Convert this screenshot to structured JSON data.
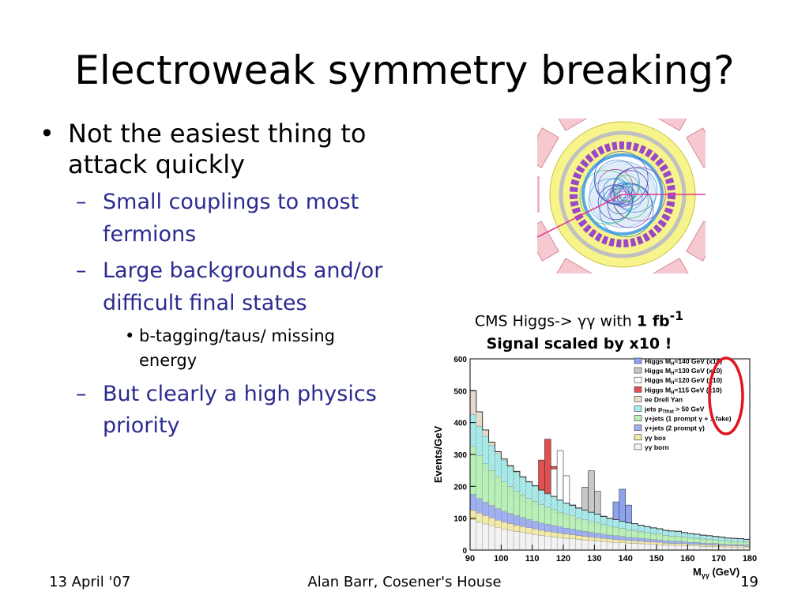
{
  "slide": {
    "title": "Electroweak symmetry breaking?",
    "bullets": {
      "main": "Not the easiest thing to attack quickly",
      "sub1": "Small couplings to most fermions",
      "sub2": "Large backgrounds and/or difficult final states",
      "subsub": "b-tagging/taus/ missing energy",
      "sub3": "But clearly a high physics priority"
    },
    "markers": {
      "dot": "•",
      "dash": "–"
    }
  },
  "caption": {
    "line1_prefix": "CMS Higgs-> ",
    "gamma_gamma": "γγ",
    "line1_with": " with ",
    "lumi": "1 fb",
    "lumi_exp": "-1",
    "line2": "Signal scaled by x10 !"
  },
  "footer": {
    "date": "13 April '07",
    "author": "Alan Barr, Cosener's House",
    "page": "19"
  },
  "chart_data": {
    "type": "bar",
    "ylabel": "Events/GeV",
    "xlabel_main": "M",
    "xlabel_sub": "γγ",
    "xlabel_unit": " (GeV)",
    "xlim": [
      90,
      180
    ],
    "ylim": [
      0,
      600
    ],
    "x_ticks": [
      90,
      100,
      110,
      120,
      130,
      140,
      150,
      160,
      170,
      180
    ],
    "y_ticks": [
      0,
      100,
      200,
      300,
      400,
      500,
      600
    ],
    "x": [
      91,
      93,
      95,
      97,
      99,
      101,
      103,
      105,
      107,
      109,
      111,
      113,
      115,
      117,
      119,
      121,
      123,
      125,
      127,
      129,
      131,
      133,
      135,
      137,
      139,
      141,
      143,
      145,
      147,
      149,
      151,
      153,
      155,
      157,
      159,
      161,
      163,
      165,
      167,
      169,
      171,
      173,
      175,
      177,
      179
    ],
    "stack_series": [
      {
        "name": "γγ born",
        "color": "#f2f2f2",
        "values": [
          95,
          88,
          82,
          76,
          71,
          66,
          62,
          58,
          55,
          52,
          49,
          46,
          44,
          41,
          39,
          37,
          35,
          33,
          31,
          30,
          28,
          27,
          25,
          24,
          23,
          22,
          21,
          20,
          19,
          18,
          17,
          16,
          15,
          15,
          14,
          13,
          13,
          12,
          11,
          11,
          10,
          10,
          9,
          9,
          8
        ]
      },
      {
        "name": "γγ box",
        "color": "#f3e9a8",
        "values": [
          30,
          28,
          26,
          25,
          23,
          22,
          21,
          20,
          19,
          18,
          17,
          16,
          15,
          15,
          14,
          13,
          13,
          12,
          12,
          11,
          11,
          10,
          10,
          9,
          9,
          8,
          8,
          8,
          7,
          7,
          7,
          6,
          6,
          6,
          6,
          5,
          5,
          5,
          5,
          5,
          4,
          4,
          4,
          4,
          4
        ]
      },
      {
        "name": "γ+jets (2 prompt γ)",
        "color": "#9fb0f0",
        "values": [
          50,
          46,
          42,
          39,
          36,
          34,
          32,
          30,
          28,
          26,
          25,
          23,
          22,
          21,
          20,
          19,
          18,
          17,
          16,
          15,
          14,
          13,
          12,
          12,
          11,
          10,
          10,
          9,
          9,
          8,
          8,
          7,
          7,
          7,
          6,
          6,
          6,
          5,
          5,
          5,
          5,
          4,
          4,
          4,
          4
        ]
      },
      {
        "name": "γ+jets (1 prompt γ + 1 fake)",
        "color": "#b8f0b8",
        "values": [
          150,
          135,
          122,
          110,
          100,
          92,
          84,
          77,
          71,
          66,
          61,
          57,
          53,
          50,
          46,
          43,
          41,
          38,
          36,
          34,
          32,
          30,
          28,
          27,
          25,
          24,
          23,
          21,
          20,
          19,
          18,
          17,
          16,
          16,
          15,
          14,
          13,
          13,
          12,
          11,
          11,
          10,
          10,
          9,
          9
        ]
      },
      {
        "name": "jets pTthat > 50 GeV",
        "color": "#a8ecec",
        "values": [
          100,
          92,
          85,
          79,
          73,
          68,
          63,
          59,
          55,
          51,
          48,
          45,
          42,
          40,
          37,
          35,
          33,
          31,
          30,
          28,
          27,
          25,
          24,
          23,
          22,
          21,
          20,
          19,
          18,
          17,
          16,
          15,
          15,
          14,
          13,
          13,
          12,
          11,
          11,
          10,
          10,
          9,
          9,
          9,
          8
        ]
      },
      {
        "name": "ee Drell Yan",
        "color": "#e8dccc",
        "values": [
          75,
          45,
          20,
          10,
          6,
          4,
          3,
          3,
          2,
          2,
          2,
          2,
          2,
          2,
          1,
          1,
          1,
          1,
          1,
          1,
          1,
          1,
          1,
          1,
          1,
          1,
          1,
          1,
          1,
          1,
          1,
          1,
          1,
          1,
          1,
          1,
          1,
          1,
          1,
          1,
          1,
          1,
          1,
          1,
          1
        ]
      }
    ],
    "signal_series": [
      {
        "name": "Higgs MH=115 GeV (x10)",
        "mass": 115,
        "color": "#e05050",
        "peak": 170
      },
      {
        "name": "Higgs MH=120 GeV (x10)",
        "mass": 120,
        "color": "#ffffff",
        "peak": 155
      },
      {
        "name": "Higgs MH=130 GeV (x10)",
        "mass": 130,
        "color": "#c8c8c8",
        "peak": 130
      },
      {
        "name": "Higgs MH=140 GeV (x10)",
        "mass": 140,
        "color": "#8ea2ee",
        "peak": 100
      }
    ],
    "legend": {
      "placement": "top-right",
      "entries": [
        {
          "label": "Higgs M",
          "sub": "H",
          "rest": "=140 GeV (x10)",
          "color": "#8ea2ee"
        },
        {
          "label": "Higgs M",
          "sub": "H",
          "rest": "=130 GeV (x10)",
          "color": "#c8c8c8"
        },
        {
          "label": "Higgs M",
          "sub": "H",
          "rest": "=120 GeV (x10)",
          "color": "#ffffff"
        },
        {
          "label": "Higgs M",
          "sub": "H",
          "rest": "=115 GeV (x10)",
          "color": "#e05050"
        },
        {
          "label": "ee Drell Yan",
          "sub": "",
          "rest": "",
          "color": "#e8dccc"
        },
        {
          "label": "jets p",
          "sub": "Tthat",
          "rest": " > 50 GeV",
          "color": "#a8ecec"
        },
        {
          "label": "γ+jets (1 prompt γ + 1 fake)",
          "sub": "",
          "rest": "",
          "color": "#b8f0b8"
        },
        {
          "label": "γ+jets (2 prompt γ)",
          "sub": "",
          "rest": "",
          "color": "#9fb0f0"
        },
        {
          "label": "γγ box",
          "sub": "",
          "rest": "",
          "color": "#f3e9a8"
        },
        {
          "label": "γγ born",
          "sub": "",
          "rest": "",
          "color": "#f2f2f2"
        }
      ]
    },
    "annotation": {
      "circle_color": "#e0141e"
    }
  },
  "event_display": {
    "colors": {
      "outer": "#f6c8d0",
      "calorimeter": "#f8f48c",
      "grey_ring": "#c0c0c0",
      "purple": "#9a48c8",
      "blue_ring": "#58a8e8",
      "tracker": "#e0ecf8",
      "photon": "#e23a8a"
    }
  }
}
